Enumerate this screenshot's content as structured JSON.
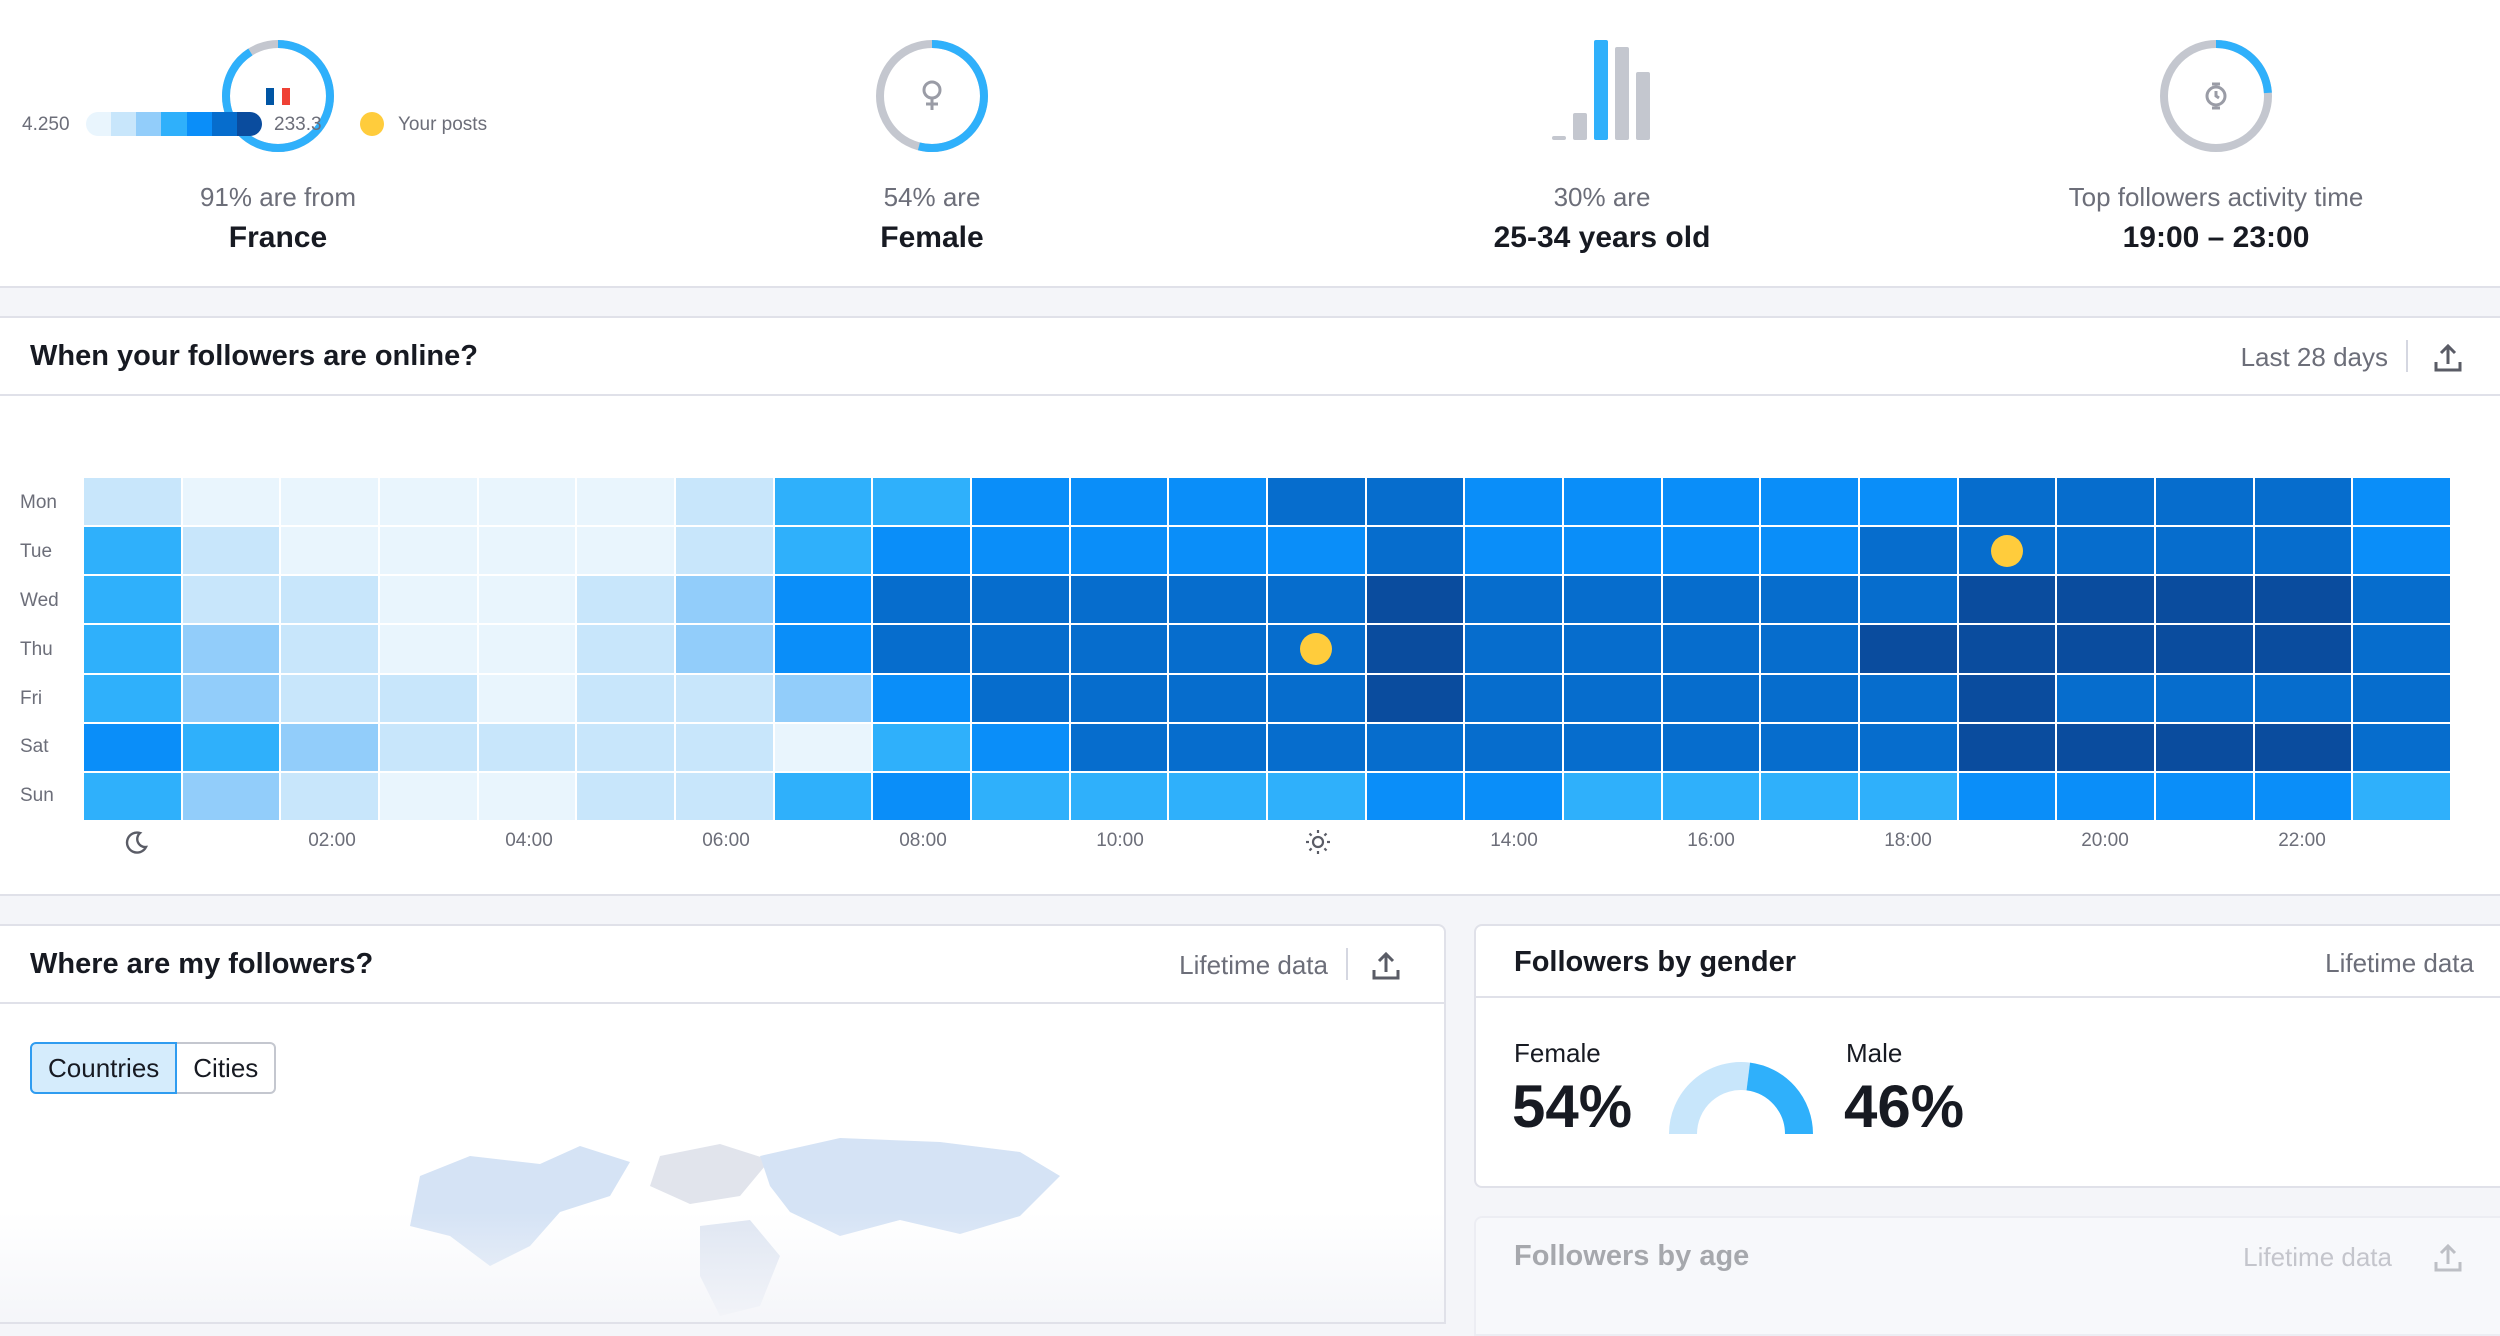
{
  "summary": {
    "country": {
      "caption": "91% are from",
      "value": "France",
      "percent": 91,
      "flag": [
        "#0055a4",
        "#ffffff",
        "#ef4135"
      ]
    },
    "gender": {
      "caption": "54% are",
      "value": "Female",
      "percent": 54
    },
    "age": {
      "caption": "30% are",
      "value": "25-34 years old",
      "bar_levels": [
        0.04,
        0.27,
        1.0,
        0.93,
        0.68
      ]
    },
    "activity": {
      "caption": "Top followers activity time",
      "value": "19:00 – 23:00",
      "percent": 24
    }
  },
  "heatmap": {
    "title": "When your followers are online?",
    "period": "Last 28 days",
    "legend": {
      "min": "4.250",
      "max": "233.3",
      "posts_label": "Your posts",
      "scale": [
        "#e9f5fd",
        "#c8e6fb",
        "#92cdfa",
        "#2fb0fb",
        "#0a8ef9",
        "#066dcd",
        "#0a4c9e"
      ]
    },
    "days": [
      "Mon",
      "Tue",
      "Wed",
      "Thu",
      "Fri",
      "Sat",
      "Sun"
    ],
    "hour_labels": [
      "02:00",
      "04:00",
      "06:00",
      "08:00",
      "10:00",
      "14:00",
      "16:00",
      "18:00",
      "20:00",
      "22:00"
    ],
    "levels": [
      [
        1,
        0,
        0,
        0,
        0,
        0,
        1,
        3,
        3,
        4,
        4,
        4,
        5,
        5,
        4,
        4,
        4,
        4,
        4,
        5,
        5,
        5,
        5,
        4
      ],
      [
        3,
        1,
        0,
        0,
        0,
        0,
        1,
        3,
        4,
        4,
        4,
        4,
        4,
        5,
        4,
        4,
        4,
        4,
        5,
        5,
        5,
        5,
        5,
        4
      ],
      [
        3,
        1,
        1,
        0,
        0,
        1,
        2,
        4,
        5,
        5,
        5,
        5,
        5,
        6,
        5,
        5,
        5,
        5,
        5,
        6,
        6,
        6,
        6,
        5
      ],
      [
        3,
        2,
        1,
        0,
        0,
        1,
        2,
        4,
        5,
        5,
        5,
        5,
        5,
        6,
        5,
        5,
        5,
        5,
        6,
        6,
        6,
        6,
        6,
        5
      ],
      [
        3,
        2,
        1,
        1,
        0,
        1,
        1,
        2,
        4,
        5,
        5,
        5,
        5,
        6,
        5,
        5,
        5,
        5,
        5,
        6,
        5,
        5,
        5,
        5
      ],
      [
        4,
        3,
        2,
        1,
        1,
        1,
        1,
        0,
        3,
        4,
        5,
        5,
        5,
        5,
        5,
        5,
        5,
        5,
        5,
        6,
        6,
        6,
        6,
        5
      ],
      [
        3,
        2,
        1,
        0,
        0,
        1,
        1,
        3,
        4,
        3,
        3,
        3,
        3,
        4,
        4,
        3,
        3,
        3,
        3,
        4,
        4,
        4,
        4,
        3
      ]
    ],
    "posts": [
      {
        "day": 1,
        "hour": 19
      },
      {
        "day": 3,
        "hour": 12
      }
    ]
  },
  "where": {
    "title": "Where are my followers?",
    "period": "Lifetime data",
    "tabs": [
      "Countries",
      "Cities"
    ],
    "active_tab": "Countries"
  },
  "gender": {
    "title": "Followers by gender",
    "period": "Lifetime data",
    "female_label": "Female",
    "female_value": "54%",
    "male_label": "Male",
    "male_value": "46%",
    "female_share": 54,
    "male_share": 46
  },
  "age": {
    "title": "Followers by age",
    "period": "Lifetime data"
  },
  "colors": {
    "accent": "#2fb0fb",
    "ring_track": "#c4c7cf",
    "post_marker": "#ffcc3c"
  }
}
